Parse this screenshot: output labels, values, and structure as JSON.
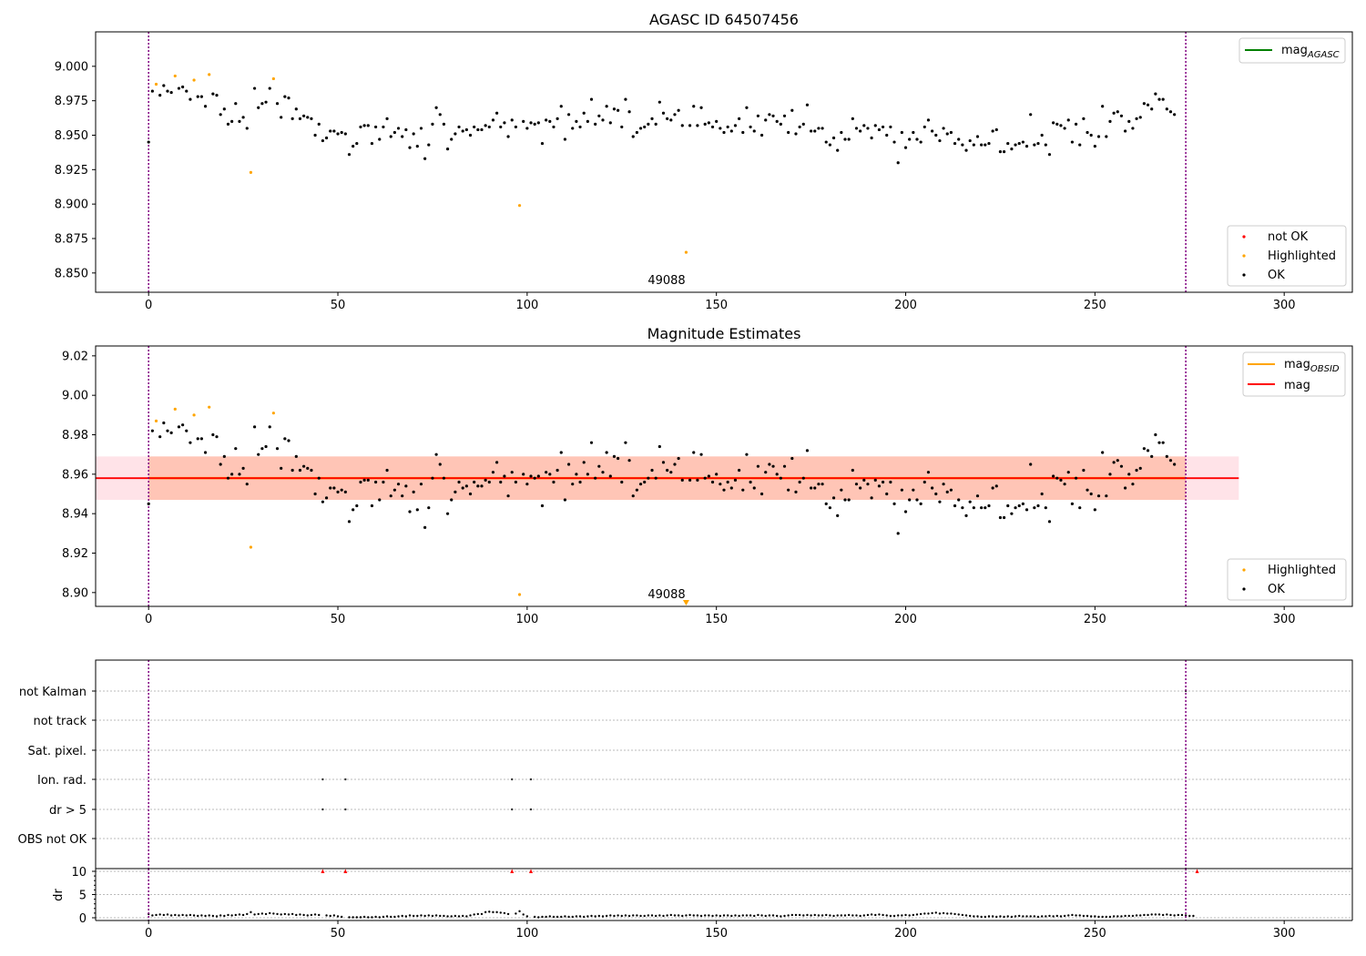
{
  "colors": {
    "ok": "#000000",
    "highlighted": "#ffa500",
    "not_ok": "#ff0000",
    "mag_agasc": "#008000",
    "mag_obsid": "#ffa500",
    "mag": "#ff0000",
    "obs_boundary": "#800080",
    "band_mag": "#ffc0cb",
    "band_obsid": "#ffa07a"
  },
  "chart_data": [
    {
      "id": "top",
      "type": "scatter",
      "title": "AGASC ID 64507456",
      "xlabel": "",
      "ylabel": "",
      "xlim": [
        -14,
        318
      ],
      "ylim": [
        8.836,
        9.025
      ],
      "x_ticks": [
        "0",
        "50",
        "100",
        "150",
        "200",
        "250",
        "300"
      ],
      "y_ticks": [
        "8.850",
        "8.875",
        "8.900",
        "8.925",
        "8.950",
        "8.975",
        "9.000"
      ],
      "obsid_label": "49088",
      "obs_boundaries": [
        0,
        274
      ],
      "legend_top": {
        "placement": "top-right",
        "entries": [
          "mag_{AGASC}"
        ]
      },
      "legend_bottom": {
        "placement": "lower-right",
        "entries": [
          "not OK",
          "Highlighted",
          "OK"
        ]
      },
      "highlighted_points": [
        [
          2,
          8.987
        ],
        [
          7,
          8.993
        ],
        [
          12,
          8.99
        ],
        [
          16,
          8.994
        ],
        [
          27,
          8.923
        ],
        [
          33,
          8.991
        ],
        [
          98,
          8.899
        ],
        [
          142,
          8.865
        ]
      ],
      "ok_series": "magnitude, 275 samples; values per sample listed in magnitudes.ok"
    },
    {
      "id": "middle",
      "type": "scatter",
      "title": "Magnitude Estimates",
      "xlabel": "",
      "ylabel": "",
      "xlim": [
        -14,
        318
      ],
      "ylim": [
        8.893,
        9.025
      ],
      "x_ticks": [
        "0",
        "50",
        "100",
        "150",
        "200",
        "250",
        "300"
      ],
      "y_ticks": [
        "8.90",
        "8.92",
        "8.94",
        "8.96",
        "8.98",
        "9.00",
        "9.02"
      ],
      "obsid_label": "49088",
      "obs_boundaries": [
        0,
        274
      ],
      "mag": 8.958,
      "mag_band": [
        8.947,
        8.969
      ],
      "mag_band_x": [
        -14,
        288
      ],
      "mag_obsid": 8.958,
      "mag_obsid_band": [
        8.947,
        8.969
      ],
      "mag_obsid_band_x": [
        0,
        274
      ],
      "offscale_marker": [
        142,
        8.893
      ],
      "legend_top": {
        "placement": "top-right",
        "entries": [
          "mag_{OBSID}",
          "mag"
        ]
      },
      "legend_bottom": {
        "placement": "lower-right",
        "entries": [
          "Highlighted",
          "OK"
        ]
      },
      "highlighted_points": [
        [
          2,
          8.987
        ],
        [
          7,
          8.993
        ],
        [
          12,
          8.99
        ],
        [
          16,
          8.994
        ],
        [
          27,
          8.923
        ],
        [
          33,
          8.991
        ],
        [
          98,
          8.899
        ]
      ]
    },
    {
      "id": "flags",
      "type": "scatter",
      "title": "",
      "xlim": [
        -14,
        318
      ],
      "categories": [
        "not Kalman",
        "not track",
        "Sat. pixel.",
        "Ion. rad.",
        "dr > 5",
        "OBS not OK"
      ],
      "flag_points": {
        "Ion. rad.": [
          46,
          52,
          96,
          101
        ],
        "dr > 5": [
          46,
          52,
          96,
          101
        ],
        "not Kalman": [
          274
        ]
      },
      "obs_boundaries": [
        0,
        274
      ]
    },
    {
      "id": "dr",
      "type": "scatter",
      "title": "",
      "xlabel": "",
      "ylabel": "dr",
      "xlim": [
        -14,
        318
      ],
      "ylim": [
        -0.5,
        10.5
      ],
      "x_ticks": [
        "0",
        "50",
        "100",
        "150",
        "200",
        "250",
        "300"
      ],
      "y_ticks": [
        "0",
        "5",
        "10"
      ],
      "clipped_points": [
        46,
        52,
        96,
        101,
        274
      ],
      "obs_boundaries": [
        0,
        274
      ]
    }
  ],
  "magnitudes": {
    "ok": [
      8.945,
      8.982,
      8.987,
      8.979,
      8.986,
      8.982,
      8.981,
      8.993,
      8.984,
      8.985,
      8.982,
      8.976,
      8.99,
      8.978,
      8.978,
      8.971,
      8.994,
      8.98,
      8.979,
      8.965,
      8.969,
      8.958,
      8.96,
      8.973,
      8.96,
      8.963,
      8.955,
      8.923,
      8.984,
      8.97,
      8.973,
      8.974,
      8.984,
      8.991,
      8.973,
      8.963,
      8.978,
      8.977,
      8.962,
      8.969,
      8.962,
      8.964,
      8.963,
      8.962,
      8.95,
      8.958,
      8.946,
      8.948,
      8.953,
      8.953,
      8.951,
      8.952,
      8.951,
      8.936,
      8.942,
      8.944,
      8.956,
      8.957,
      8.957,
      8.944,
      8.956,
      8.947,
      8.956,
      8.962,
      8.949,
      8.952,
      8.955,
      8.949,
      8.954,
      8.941,
      8.951,
      8.942,
      8.955,
      8.933,
      8.943,
      8.958,
      8.97,
      8.965,
      8.958,
      8.94,
      8.947,
      8.951,
      8.956,
      8.953,
      8.954,
      8.95,
      8.956,
      8.954,
      8.954,
      8.957,
      8.956,
      8.961,
      8.966,
      8.956,
      8.959,
      8.949,
      8.961,
      8.956,
      8.899,
      8.96,
      8.955,
      8.959,
      8.958,
      8.959,
      8.944,
      8.961,
      8.96,
      8.956,
      8.962,
      8.971,
      8.947,
      8.965,
      8.955,
      8.96,
      8.956,
      8.966,
      8.96,
      8.976,
      8.958,
      8.964,
      8.961,
      8.971,
      8.959,
      8.969,
      8.968,
      8.956,
      8.976,
      8.967,
      8.949,
      8.952,
      8.955,
      8.956,
      8.958,
      8.962,
      8.958,
      8.974,
      8.966,
      8.962,
      8.961,
      8.965,
      8.968,
      8.957,
      8.865,
      8.957,
      8.971,
      8.957,
      8.97,
      8.958,
      8.959,
      8.956,
      8.96,
      8.955,
      8.952,
      8.956,
      8.953,
      8.957,
      8.962,
      8.952,
      8.97,
      8.956,
      8.953,
      8.964,
      8.95,
      8.961,
      8.965,
      8.964,
      8.96,
      8.958,
      8.964,
      8.952,
      8.968,
      8.951,
      8.956,
      8.958,
      8.972,
      8.953,
      8.953,
      8.955,
      8.955,
      8.945,
      8.943,
      8.948,
      8.939,
      8.952,
      8.947,
      8.947,
      8.962,
      8.955,
      8.953,
      8.957,
      8.955,
      8.948,
      8.957,
      8.954,
      8.956,
      8.95,
      8.956,
      8.945,
      8.93,
      8.952,
      8.941,
      8.947,
      8.952,
      8.947,
      8.945,
      8.956,
      8.961,
      8.953,
      8.95,
      8.946,
      8.955,
      8.951,
      8.952,
      8.944,
      8.947,
      8.943,
      8.939,
      8.946,
      8.943,
      8.949,
      8.943,
      8.943,
      8.944,
      8.953,
      8.954,
      8.938,
      8.938,
      8.944,
      8.94,
      8.943,
      8.944,
      8.945,
      8.942,
      8.965,
      8.943,
      8.944,
      8.95,
      8.943,
      8.936,
      8.959,
      8.958,
      8.957,
      8.955,
      8.961,
      8.945,
      8.958,
      8.943,
      8.962,
      8.952,
      8.95,
      8.942,
      8.949,
      8.971,
      8.949,
      8.96,
      8.966,
      8.967,
      8.964,
      8.953,
      8.96,
      8.955,
      8.962,
      8.963,
      8.973,
      8.972,
      8.969,
      8.98,
      8.976,
      8.976,
      8.969,
      8.967,
      8.965
    ],
    "dr": [
      0.8,
      0.5,
      0.6,
      0.7,
      0.6,
      0.7,
      0.5,
      0.6,
      0.5,
      0.6,
      0.5,
      0.6,
      0.5,
      0.4,
      0.5,
      0.4,
      0.5,
      0.4,
      0.3,
      0.5,
      0.4,
      0.6,
      0.5,
      0.6,
      0.7,
      0.6,
      0.8,
      1.2,
      0.7,
      0.8,
      0.9,
      0.8,
      1.0,
      0.9,
      0.8,
      0.7,
      0.8,
      0.7,
      0.8,
      0.6,
      0.7,
      0.6,
      0.5,
      0.6,
      0.7,
      0.6,
      10.5,
      0.5,
      0.4,
      0.5,
      0.3,
      0.2,
      10.5,
      0.1,
      0.1,
      0.1,
      0.1,
      0.2,
      0.1,
      0.1,
      0.2,
      0.1,
      0.2,
      0.3,
      0.2,
      0.2,
      0.3,
      0.4,
      0.3,
      0.5,
      0.4,
      0.4,
      0.5,
      0.4,
      0.5,
      0.4,
      0.5,
      0.4,
      0.4,
      0.3,
      0.3,
      0.4,
      0.3,
      0.4,
      0.3,
      0.5,
      0.7,
      0.8,
      0.8,
      1.2,
      1.3,
      1.2,
      1.2,
      1.1,
      1.0,
      0.8,
      10.5,
      0.9,
      1.4,
      0.7,
      0.3,
      10.5,
      0.2,
      0.1,
      0.2,
      0.2,
      0.3,
      0.2,
      0.2,
      0.2,
      0.3,
      0.2,
      0.2,
      0.3,
      0.3,
      0.2,
      0.3,
      0.4,
      0.3,
      0.4,
      0.3,
      0.4,
      0.5,
      0.4,
      0.5,
      0.4,
      0.5,
      0.4,
      0.5,
      0.5,
      0.4,
      0.4,
      0.5,
      0.5,
      0.4,
      0.5,
      0.4,
      0.5,
      0.6,
      0.5,
      0.5,
      0.4,
      0.5,
      0.6,
      0.5,
      0.5,
      0.4,
      0.5,
      0.5,
      0.4,
      0.5,
      0.4,
      0.5,
      0.5,
      0.4,
      0.5,
      0.4,
      0.5,
      0.5,
      0.5,
      0.4,
      0.6,
      0.5,
      0.4,
      0.5,
      0.5,
      0.4,
      0.3,
      0.4,
      0.5,
      0.6,
      0.6,
      0.6,
      0.5,
      0.6,
      0.5,
      0.6,
      0.5,
      0.5,
      0.6,
      0.5,
      0.4,
      0.5,
      0.5,
      0.5,
      0.6,
      0.5,
      0.5,
      0.4,
      0.5,
      0.6,
      0.7,
      0.6,
      0.7,
      0.6,
      0.5,
      0.4,
      0.4,
      0.5,
      0.5,
      0.6,
      0.5,
      0.6,
      0.7,
      0.8,
      0.9,
      0.9,
      1.0,
      1.1,
      0.9,
      1.0,
      0.9,
      0.9,
      0.8,
      0.7,
      0.6,
      0.5,
      0.4,
      0.3,
      0.3,
      0.2,
      0.2,
      0.3,
      0.3,
      0.2,
      0.3,
      0.2,
      0.3,
      0.2,
      0.3,
      0.4,
      0.3,
      0.3,
      0.3,
      0.3,
      0.2,
      0.3,
      0.3,
      0.4,
      0.3,
      0.4,
      0.3,
      0.4,
      0.5,
      0.6,
      0.5,
      0.5,
      0.4,
      0.4,
      0.3,
      0.3,
      0.2,
      0.2,
      0.2,
      0.2,
      0.3,
      0.3,
      0.3,
      0.4,
      0.4,
      0.4,
      0.5,
      0.5,
      0.6,
      0.6,
      0.7,
      0.7,
      0.7,
      0.6,
      0.7,
      0.6,
      0.5,
      0.6,
      0.6,
      0.5,
      0.4,
      0.4,
      10.5
    ]
  }
}
